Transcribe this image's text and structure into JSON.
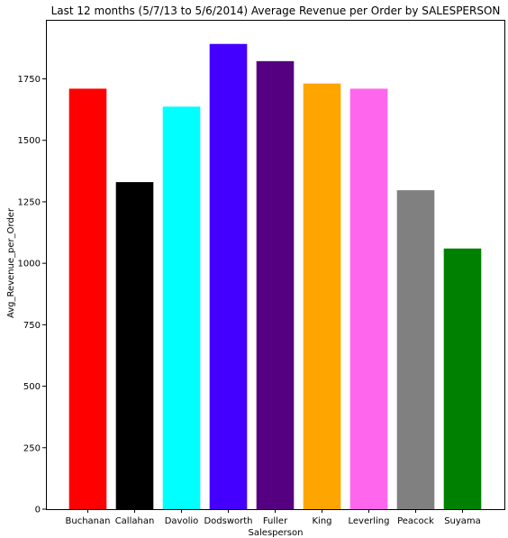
{
  "chart_data": {
    "type": "bar",
    "title": "Last 12 months (5/7/13 to 5/6/2014) Average Revenue per Order by SALESPERSON",
    "xlabel": "Salesperson",
    "ylabel": "Avg_Revenue_per_Order",
    "categories": [
      "Buchanan",
      "Callahan",
      "Davolio",
      "Dodsworth",
      "Fuller",
      "King",
      "Leverling",
      "Peacock",
      "Suyama"
    ],
    "values": [
      1710,
      1330,
      1637,
      1892,
      1822,
      1731,
      1710,
      1297,
      1060
    ],
    "colors": [
      "#ff0000",
      "#000000",
      "#00ffff",
      "#4400ff",
      "#550080",
      "#ffa500",
      "#ff66ee",
      "#808080",
      "#008000"
    ],
    "ylim": [
      0,
      1990
    ],
    "yticks": [
      0,
      250,
      500,
      750,
      1000,
      1250,
      1500,
      1750
    ],
    "grid": false,
    "legend": "none"
  }
}
